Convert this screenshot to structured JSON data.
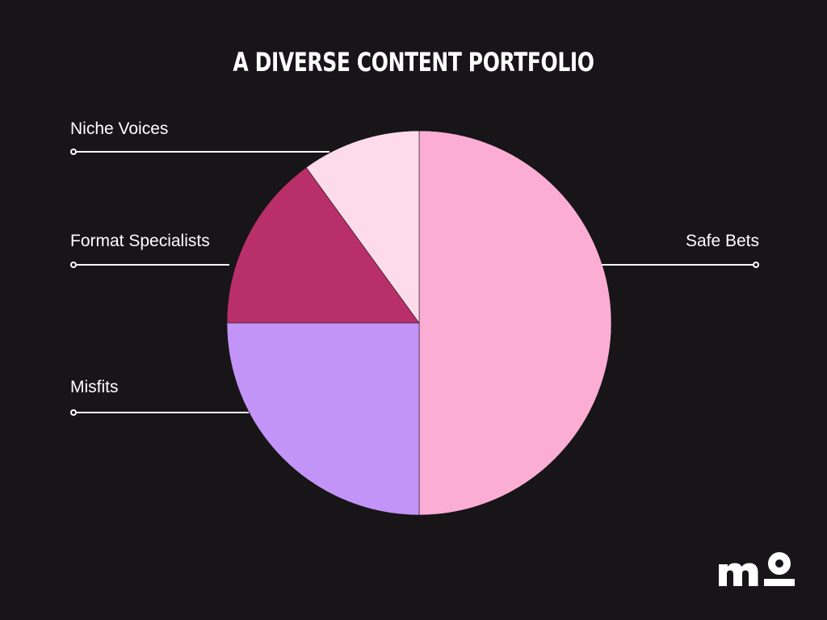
{
  "chart_data": {
    "type": "pie",
    "title": "A DIVERSE CONTENT PORTFOLIO",
    "slices": [
      {
        "label": "Safe Bets",
        "value": 50,
        "color": "#fbadd4"
      },
      {
        "label": "Misfits",
        "value": 25,
        "color": "#c394f7"
      },
      {
        "label": "Format Specialists",
        "value": 15,
        "color": "#b92f69"
      },
      {
        "label": "Niche Voices",
        "value": 10,
        "color": "#fedbeb"
      }
    ],
    "legend": "callout labels with leader lines",
    "start": "top, clockwise"
  },
  "colors": {
    "background": "#171518",
    "text": "#ffffff",
    "leader_lines": "#ffffff"
  },
  "brand": {
    "logo_text": "mo",
    "logo_icon": "mo-logo"
  }
}
